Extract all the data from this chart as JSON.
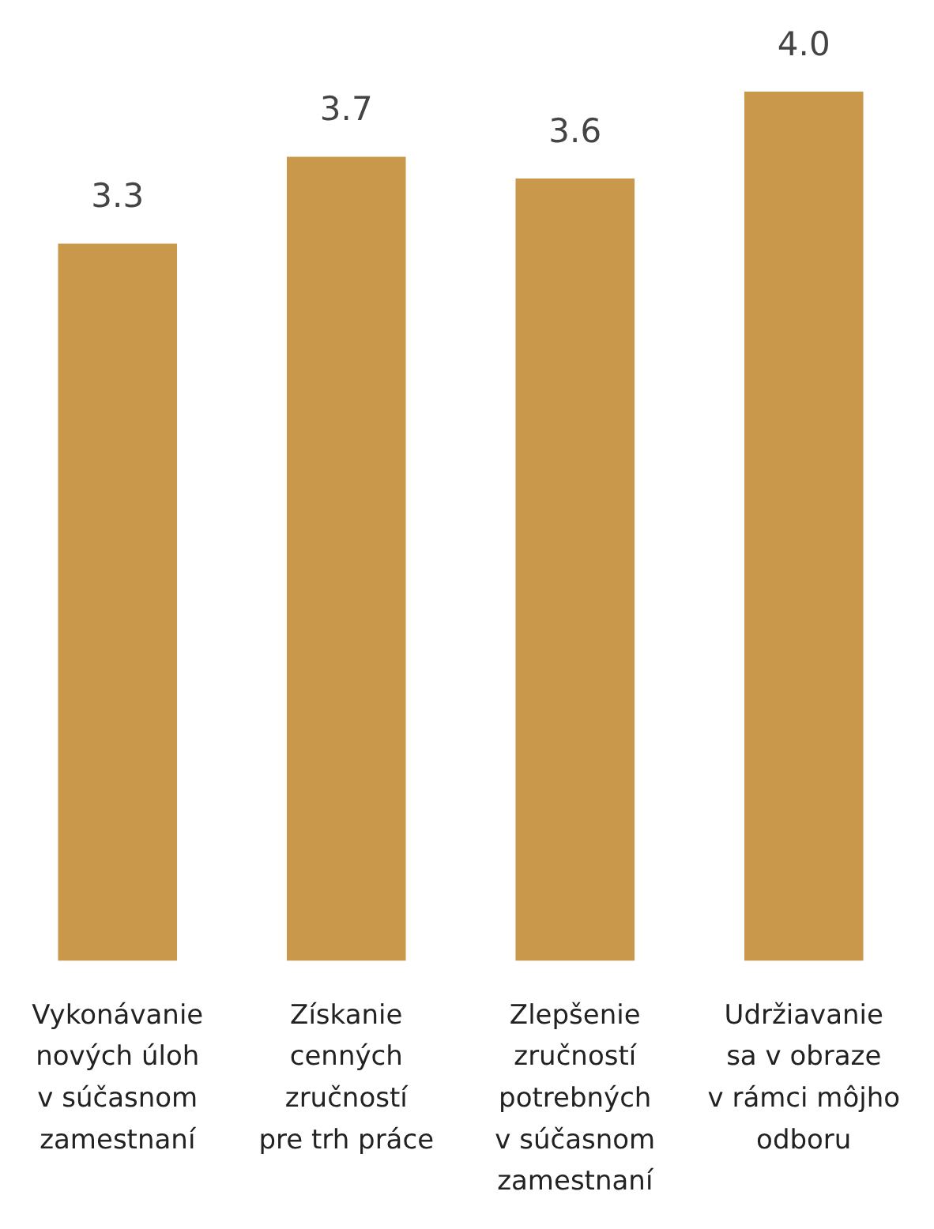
{
  "chart_data": {
    "type": "bar",
    "categories": [
      "Vykonávanie\nnových úloh\nv súčasnom\nzamestnaní",
      "Získanie\ncenných\nzručností\npre trh práce",
      "Zlepšenie\nzručností\npotrebných\nv súčasnom\nzamestnaní",
      "Udržiavanie\nsa v obraze\nv rámci môjho\nodboru"
    ],
    "values": [
      3.3,
      3.7,
      3.6,
      4.0
    ],
    "value_labels": [
      "3.3",
      "3.7",
      "3.6",
      "4.0"
    ],
    "color": "#c9984a",
    "data_labels": true
  }
}
